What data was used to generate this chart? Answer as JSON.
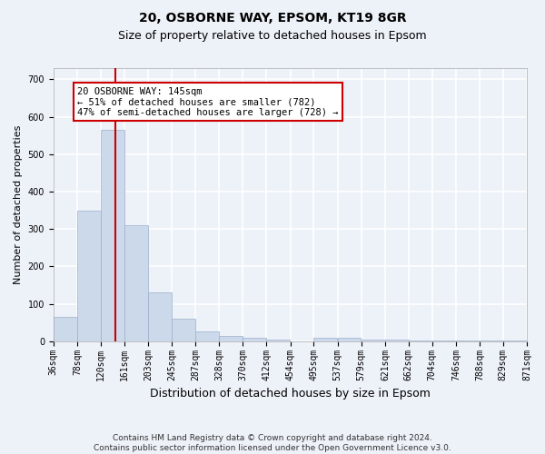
{
  "title": "20, OSBORNE WAY, EPSOM, KT19 8GR",
  "subtitle": "Size of property relative to detached houses in Epsom",
  "xlabel": "Distribution of detached houses by size in Epsom",
  "ylabel": "Number of detached properties",
  "bar_color": "#ccd9eb",
  "bar_edgecolor": "#9ab0cc",
  "vline_x": 145,
  "vline_color": "#cc0000",
  "annotation_text": "20 OSBORNE WAY: 145sqm\n← 51% of detached houses are smaller (782)\n47% of semi-detached houses are larger (728) →",
  "annotation_box_color": "white",
  "annotation_box_edgecolor": "#cc0000",
  "footer_text": "Contains HM Land Registry data © Crown copyright and database right 2024.\nContains public sector information licensed under the Open Government Licence v3.0.",
  "bin_edges": [
    36,
    78,
    120,
    161,
    203,
    245,
    287,
    328,
    370,
    412,
    454,
    495,
    537,
    579,
    621,
    662,
    704,
    746,
    788,
    829,
    871
  ],
  "bar_heights": [
    65,
    350,
    565,
    310,
    130,
    60,
    25,
    15,
    8,
    5,
    0,
    10,
    10,
    5,
    5,
    3,
    3,
    2,
    2,
    2
  ],
  "ylim": [
    0,
    730
  ],
  "yticks": [
    0,
    100,
    200,
    300,
    400,
    500,
    600,
    700
  ],
  "xlim": [
    36,
    871
  ],
  "background_color": "#edf1f8",
  "grid_color": "white",
  "title_fontsize": 10,
  "subtitle_fontsize": 9,
  "xlabel_fontsize": 9,
  "ylabel_fontsize": 8,
  "tick_fontsize": 7,
  "annotation_fontsize": 7.5,
  "footer_fontsize": 6.5
}
